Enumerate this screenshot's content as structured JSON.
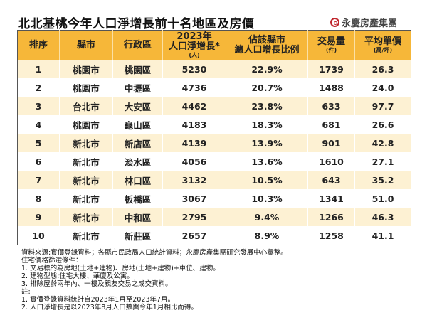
{
  "title": "北北基桃今年人口淨增長前十名地區及房價",
  "logo": {
    "text": "永慶房產集團",
    "color": "#c0262d"
  },
  "colors": {
    "header": "#f6b739",
    "odd_row": "#fdf1d3"
  },
  "table": {
    "headers": [
      {
        "label": "排序"
      },
      {
        "label": "縣市"
      },
      {
        "label": "行政區"
      },
      {
        "label": "2023年",
        "label2": "人口淨增長*",
        "unit": "(人)"
      },
      {
        "label": "佔該縣市",
        "label2": "總人口增長比例"
      },
      {
        "label": "交易量",
        "unit": "(件)"
      },
      {
        "label": "平均單價",
        "unit": "(萬/坪)"
      }
    ],
    "rows": [
      [
        "1",
        "桃園市",
        "桃園區",
        "5230",
        "22.9%",
        "1739",
        "26.3"
      ],
      [
        "2",
        "桃園市",
        "中壢區",
        "4736",
        "20.7%",
        "1488",
        "24.0"
      ],
      [
        "3",
        "台北市",
        "大安區",
        "4462",
        "23.8%",
        "633",
        "97.7"
      ],
      [
        "4",
        "桃園市",
        "龜山區",
        "4183",
        "18.3%",
        "681",
        "26.6"
      ],
      [
        "5",
        "新北市",
        "新店區",
        "4139",
        "13.9%",
        "901",
        "42.8"
      ],
      [
        "6",
        "新北市",
        "淡水區",
        "4056",
        "13.6%",
        "1610",
        "27.1"
      ],
      [
        "7",
        "新北市",
        "林口區",
        "3132",
        "10.5%",
        "643",
        "35.2"
      ],
      [
        "8",
        "新北市",
        "板橋區",
        "3067",
        "10.3%",
        "1341",
        "51.0"
      ],
      [
        "9",
        "新北市",
        "中和區",
        "2795",
        "9.4%",
        "1266",
        "46.3"
      ],
      [
        "10",
        "新北市",
        "新莊區",
        "2657",
        "8.9%",
        "1258",
        "41.1"
      ]
    ]
  },
  "notes": [
    "資料來源:實價登錄資料；各縣市民政局人口統計資料；永慶房產集團研究發展中心彙整。",
    "住宅價格篩選條件：",
    "1. 交易標的為房地(土地+建物)、房地(土地+建物)+車位、建物。",
    "2. 建物型態:住宅大樓、華廈及公寓。",
    "3. 排除屋齡兩年內、一樓及親友交易之成交資料。",
    "註:",
    "1. 實價登錄資料統計自2023年1月至2023年7月。",
    "2. 人口淨增長是以2023年8月人口數與今年1月相比而得。"
  ]
}
